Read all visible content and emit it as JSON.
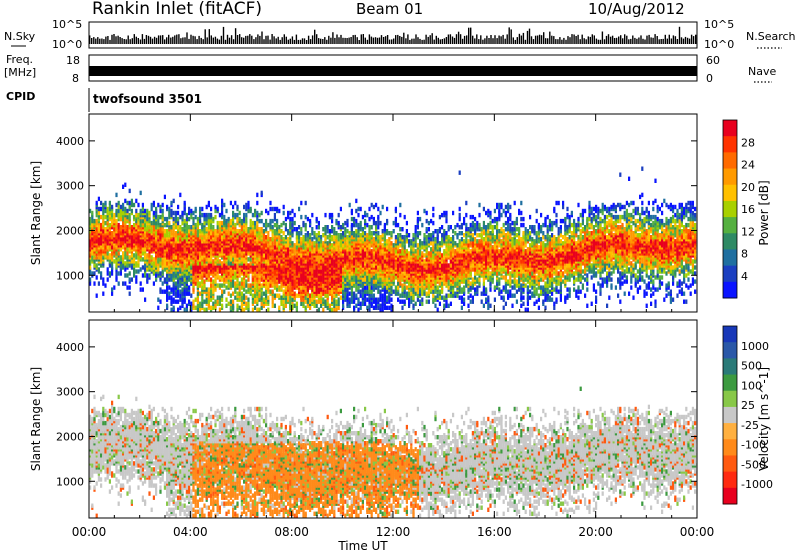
{
  "header": {
    "station": "Rankin Inlet (fitACF)",
    "beam": "Beam 01",
    "date": "10/Aug/2012"
  },
  "strips": {
    "nsky_label": "N.Sky",
    "nsearch_label": "N.Search",
    "log_top": "10^5",
    "log_bottom": "10^0",
    "freq_label": "Freq.",
    "freq_unit": "[MHz]",
    "freq_top": "18",
    "freq_bottom": "8",
    "nave_label": "Nave",
    "nave_top": "60",
    "nave_bottom": "0",
    "cpid_label": "CPID",
    "cpid_value": "twofsound 3501"
  },
  "chart_data": [
    {
      "type": "heatmap",
      "parameter": "Power",
      "ylabel": "Slant Range [km]",
      "xlabel": "",
      "x_range_hours": [
        0,
        24
      ],
      "ylim": [
        180,
        4600
      ],
      "yticks": [
        1000,
        2000,
        3000,
        4000
      ],
      "xtick_labels": [
        "00:00",
        "04:00",
        "08:00",
        "12:00",
        "16:00",
        "20:00",
        "00:00"
      ],
      "colorbar": {
        "label": "Power [dB]",
        "ticks": [
          "28",
          "24",
          "20",
          "16",
          "12",
          "8",
          "4"
        ],
        "colors_top_to_bottom": [
          "#e8001e",
          "#ff3300",
          "#ff6a00",
          "#ff9a00",
          "#ffc000",
          "#a8d000",
          "#55b040",
          "#2e8a64",
          "#1f6fa0",
          "#1b3fc0",
          "#0a14ff"
        ]
      }
    },
    {
      "type": "heatmap",
      "parameter": "Velocity",
      "ylabel": "Slant Range [km]",
      "xlabel": "Time UT",
      "x_range_hours": [
        0,
        24
      ],
      "ylim": [
        180,
        4600
      ],
      "yticks": [
        1000,
        2000,
        3000,
        4000
      ],
      "xtick_labels": [
        "00:00",
        "04:00",
        "08:00",
        "12:00",
        "16:00",
        "20:00",
        "00:00"
      ],
      "colorbar": {
        "label": "Velocity [m s^-1]",
        "ticks": [
          "1000",
          "500",
          "100",
          "25",
          "-25",
          "-100",
          "-500",
          "-1000"
        ],
        "colors_top_to_bottom": [
          "#1838b8",
          "#2a58a8",
          "#2a7a78",
          "#3c9a40",
          "#88c848",
          "#c8c8c8",
          "#ffb040",
          "#ff8a1a",
          "#ff5a10",
          "#ff2a10",
          "#e8001e"
        ]
      }
    }
  ]
}
